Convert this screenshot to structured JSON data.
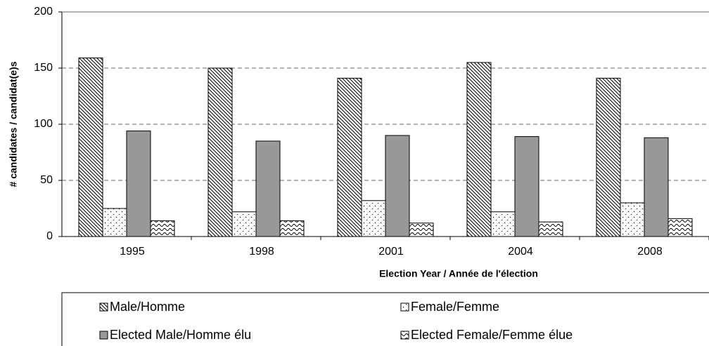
{
  "chart_data": {
    "type": "bar",
    "x_label": "Election Year / Année  de l'élection",
    "y_label": "# candidates / candidat(e)s",
    "categories": [
      "1995",
      "1998",
      "2001",
      "2004",
      "2008"
    ],
    "series": [
      {
        "name": "Male/Homme",
        "color": "#ffffff",
        "pattern": "diagonal",
        "values": [
          159,
          150,
          141,
          155,
          141
        ]
      },
      {
        "name": "Female/Femme",
        "color": "#ffffff",
        "pattern": "dots",
        "values": [
          25,
          22,
          32,
          22,
          30
        ]
      },
      {
        "name": "Elected Male/Homme élu",
        "color": "#999999",
        "pattern": "solid",
        "values": [
          94,
          85,
          90,
          89,
          88
        ]
      },
      {
        "name": "Elected Female/Femme élue",
        "color": "#ffffff",
        "pattern": "wave",
        "values": [
          14,
          14,
          12,
          13,
          16
        ]
      }
    ],
    "ylim": [
      0,
      200
    ],
    "yticks": [
      0,
      50,
      100,
      150,
      200
    ],
    "grid": true,
    "legend": "bottom"
  }
}
